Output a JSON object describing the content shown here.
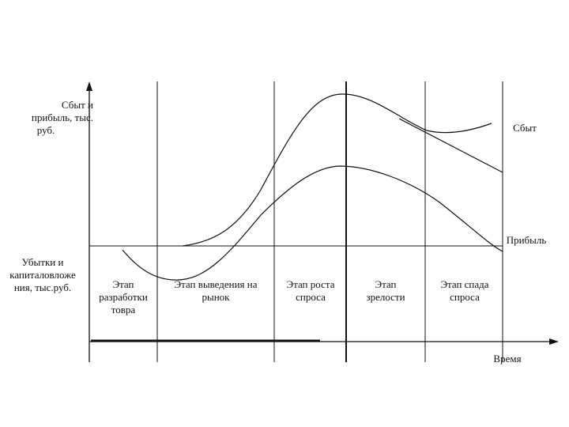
{
  "y_axis_label_top": "Сбыт и прибыль, тыс. руб.",
  "y_axis_label_bottom": "Убытки и капиталовложения, тыс.руб.",
  "y_axis_label_top_lines": [
    "Сбыт и",
    "прибыль, тыс.",
    "руб."
  ],
  "y_axis_label_bottom_lines": [
    "Убытки и",
    "капиталовложе",
    "ния, тыс.руб."
  ],
  "x_axis_label": "Время",
  "curves": {
    "sales": "Сбыт",
    "profit": "Прибыль"
  },
  "stages": [
    {
      "lines": [
        "Этап",
        "разработки",
        "товра"
      ]
    },
    {
      "lines": [
        "Этап выведения на",
        "рынок"
      ]
    },
    {
      "lines": [
        "Этап роста",
        "спроса"
      ]
    },
    {
      "lines": [
        "Этап",
        "зрелости"
      ]
    },
    {
      "lines": [
        "Этап спада",
        "спроса"
      ]
    }
  ]
}
